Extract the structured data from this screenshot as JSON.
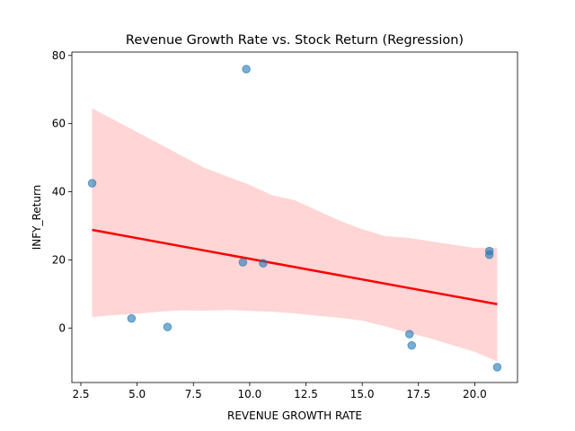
{
  "chart_data": {
    "type": "scatter",
    "title": "Revenue Growth Rate vs. Stock Return (Regression)",
    "xlabel": "REVENUE GROWTH RATE",
    "ylabel": "INFY_Return",
    "xlim": [
      2.1,
      21.9
    ],
    "ylim": [
      -16,
      81
    ],
    "xticks": [
      2.5,
      5.0,
      7.5,
      10.0,
      12.5,
      15.0,
      17.5,
      20.0
    ],
    "xtick_labels": [
      "2.5",
      "5.0",
      "7.5",
      "10.0",
      "12.5",
      "15.0",
      "17.5",
      "20.0"
    ],
    "yticks": [
      0,
      20,
      40,
      60,
      80
    ],
    "ytick_labels": [
      "0",
      "20",
      "40",
      "60",
      "80"
    ],
    "grid": false,
    "legend": "none",
    "points": [
      {
        "x": 3.0,
        "y": 42.5
      },
      {
        "x": 4.75,
        "y": 2.8
      },
      {
        "x": 6.35,
        "y": 0.3
      },
      {
        "x": 9.7,
        "y": 19.3
      },
      {
        "x": 9.85,
        "y": 76.0
      },
      {
        "x": 10.6,
        "y": 19.0
      },
      {
        "x": 17.1,
        "y": -1.8
      },
      {
        "x": 17.2,
        "y": -5.1
      },
      {
        "x": 20.65,
        "y": 22.6
      },
      {
        "x": 20.65,
        "y": 21.5
      },
      {
        "x": 21.0,
        "y": -11.5
      }
    ],
    "regression_line": {
      "x": [
        3.0,
        21.0
      ],
      "y": [
        28.8,
        7.0
      ]
    },
    "confidence_band": {
      "x": [
        3.0,
        4.0,
        5.0,
        6.0,
        7.0,
        8.0,
        9.0,
        10.0,
        11.0,
        12.0,
        13.0,
        14.0,
        15.0,
        16.0,
        17.0,
        18.0,
        19.0,
        20.0,
        21.0
      ],
      "upper": [
        64.5,
        61.0,
        57.5,
        54.0,
        50.5,
        47.0,
        44.5,
        42.0,
        39.0,
        37.5,
        34.5,
        31.5,
        29.0,
        27.0,
        26.5,
        25.5,
        24.5,
        23.5,
        23.5
      ],
      "lower": [
        3.2,
        3.8,
        4.2,
        4.8,
        5.2,
        5.1,
        5.3,
        5.0,
        4.8,
        4.3,
        3.6,
        3.0,
        2.2,
        0.5,
        -1.3,
        -3.0,
        -5.0,
        -7.0,
        -9.8
      ]
    },
    "colors": {
      "points": "#1f77b4",
      "regression": "#ff0000",
      "band": "#ffb3b3"
    }
  }
}
